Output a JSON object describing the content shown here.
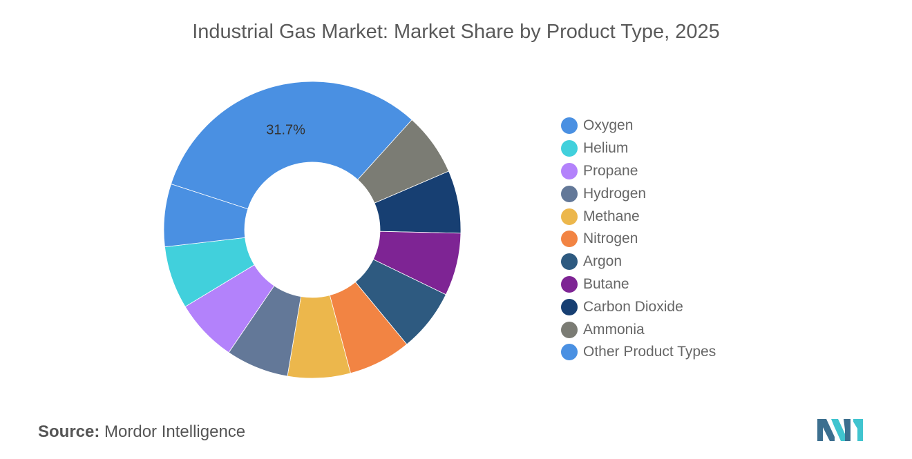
{
  "chart_data": {
    "type": "pie",
    "title": "Industrial Gas Market: Market Share by Product Type, 2025",
    "legend_position": "right",
    "slices": [
      {
        "label": "Oxygen",
        "value": 31.7,
        "color": "#4a90e2",
        "show_label": "31.7%"
      },
      {
        "label": "Ammonia",
        "value": 6.83,
        "color": "#7b7c74"
      },
      {
        "label": "Carbon Dioxide",
        "value": 6.83,
        "color": "#173f72"
      },
      {
        "label": "Butane",
        "value": 6.83,
        "color": "#7e2494"
      },
      {
        "label": "Argon",
        "value": 6.83,
        "color": "#2e5a80"
      },
      {
        "label": "Nitrogen",
        "value": 6.83,
        "color": "#f28443"
      },
      {
        "label": "Methane",
        "value": 6.83,
        "color": "#ecb74c"
      },
      {
        "label": "Hydrogen",
        "value": 6.83,
        "color": "#637898"
      },
      {
        "label": "Propane",
        "value": 6.83,
        "color": "#b382fb"
      },
      {
        "label": "Helium",
        "value": 6.83,
        "color": "#41d0dc"
      },
      {
        "label": "Other Product Types",
        "value": 6.83,
        "color": "#4a90e2"
      }
    ],
    "legend": [
      {
        "label": "Oxygen",
        "color": "#4a90e2"
      },
      {
        "label": "Helium",
        "color": "#41d0dc"
      },
      {
        "label": "Propane",
        "color": "#b382fb"
      },
      {
        "label": "Hydrogen",
        "color": "#637898"
      },
      {
        "label": "Methane",
        "color": "#ecb74c"
      },
      {
        "label": "Nitrogen",
        "color": "#f28443"
      },
      {
        "label": "Argon",
        "color": "#2e5a80"
      },
      {
        "label": "Butane",
        "color": "#7e2494"
      },
      {
        "label": "Carbon Dioxide",
        "color": "#173f72"
      },
      {
        "label": "Ammonia",
        "color": "#7b7c74"
      },
      {
        "label": "Other Product Types",
        "color": "#4a90e2"
      }
    ]
  },
  "source": {
    "label": "Source:",
    "text": "Mordor Intelligence"
  },
  "logo": {
    "name": "mordor-intelligence-logo",
    "colors": [
      "#3c6f8f",
      "#40c4cf"
    ]
  }
}
